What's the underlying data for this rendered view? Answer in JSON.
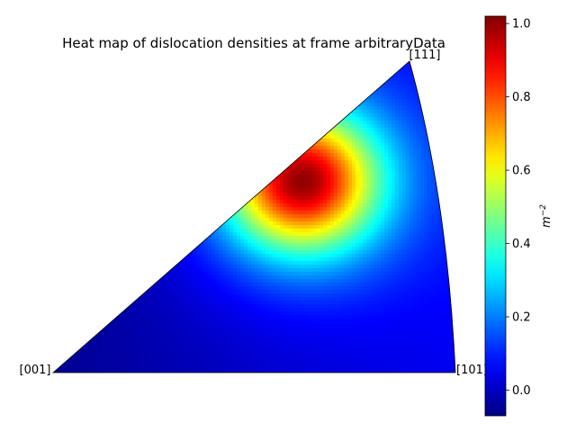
{
  "chart_data": {
    "type": "heatmap",
    "projection": "inverse pole figure (stereographic triangle)",
    "title": "Heat map of dislocation densities at frame arbitraryData",
    "corners": [
      "[001]",
      "[101]",
      "[111]"
    ],
    "colormap": "jet",
    "colorbar": {
      "label_base": "m",
      "label_exponent": "−2",
      "range": [
        -0.07,
        1.02
      ],
      "ticks": [
        0.0,
        0.2,
        0.4,
        0.6,
        0.8,
        1.0
      ],
      "tick_labels": [
        "0.0",
        "0.2",
        "0.4",
        "0.6",
        "0.8",
        "1.0"
      ],
      "placement": "right"
    },
    "density_field": {
      "peak": {
        "value": 1.0,
        "location": "near [001]–[111] edge, about 0.6 of the way toward [111]"
      },
      "minimum": {
        "value": -0.05,
        "location": "near [001]"
      },
      "near_101": 0.05,
      "near_111": 0.05,
      "along_001_101_edge": 0.06
    },
    "grid": false
  }
}
